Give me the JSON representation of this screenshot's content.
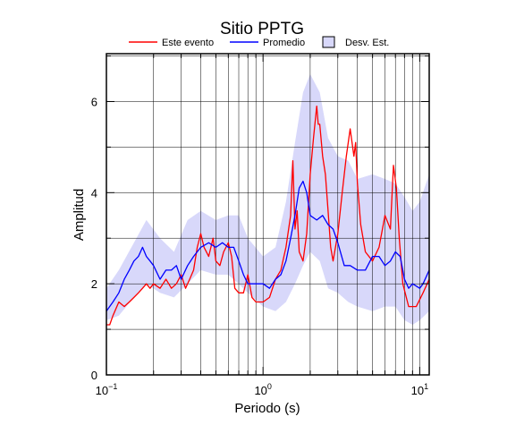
{
  "chart_data": {
    "type": "line",
    "title": "Sitio PPTG",
    "xlabel": "Periodo (s)",
    "ylabel": "Amplitud",
    "x_scale": "log",
    "xlim": [
      0.1,
      11.5
    ],
    "ylim": [
      0,
      7.05
    ],
    "grid": true,
    "legend_position": "top",
    "x_ticks": [
      {
        "value": 0.1,
        "base": "10",
        "exp": "−1"
      },
      {
        "value": 1,
        "base": "10",
        "exp": "0"
      },
      {
        "value": 10,
        "base": "10",
        "exp": "1"
      }
    ],
    "y_ticks": [
      "0",
      "2",
      "4",
      "6"
    ],
    "legend": [
      {
        "label": "Este evento",
        "kind": "line",
        "color": "#ff0000"
      },
      {
        "label": "Promedio",
        "kind": "line",
        "color": "#0000ff"
      },
      {
        "label": "Desv. Est.",
        "kind": "box",
        "color": "#d8d8fa"
      }
    ],
    "band": {
      "name": "Desv. Est.",
      "color": "#d8d8fa",
      "x": [
        0.1,
        0.12,
        0.15,
        0.18,
        0.22,
        0.27,
        0.33,
        0.4,
        0.5,
        0.6,
        0.7,
        0.8,
        1.0,
        1.2,
        1.4,
        1.6,
        1.8,
        2.0,
        2.3,
        2.6,
        3.0,
        3.5,
        4.0,
        5.0,
        6.0,
        7.0,
        8.0,
        9.0,
        10.0,
        11.5
      ],
      "upper": [
        1.9,
        2.3,
        2.9,
        3.4,
        3.0,
        2.7,
        3.4,
        3.6,
        3.4,
        3.5,
        3.5,
        3.0,
        2.6,
        2.8,
        3.8,
        5.1,
        6.2,
        6.6,
        6.2,
        5.2,
        4.8,
        4.7,
        4.3,
        4.4,
        4.3,
        4.2,
        3.9,
        3.6,
        3.8,
        4.4
      ],
      "lower": [
        1.2,
        1.3,
        1.7,
        2.0,
        1.8,
        1.7,
        2.0,
        2.3,
        2.2,
        2.2,
        2.0,
        1.8,
        1.5,
        1.4,
        1.6,
        2.0,
        2.4,
        2.7,
        2.5,
        1.9,
        1.8,
        1.6,
        1.5,
        1.4,
        1.5,
        1.5,
        1.2,
        1.1,
        1.2,
        1.4
      ]
    },
    "series": [
      {
        "name": "Este evento",
        "color": "#ff0000",
        "x": [
          0.1,
          0.105,
          0.11,
          0.12,
          0.13,
          0.14,
          0.15,
          0.16,
          0.17,
          0.18,
          0.19,
          0.2,
          0.22,
          0.24,
          0.26,
          0.28,
          0.3,
          0.32,
          0.34,
          0.36,
          0.38,
          0.4,
          0.42,
          0.45,
          0.48,
          0.5,
          0.53,
          0.56,
          0.6,
          0.63,
          0.66,
          0.7,
          0.75,
          0.8,
          0.85,
          0.9,
          1.0,
          1.1,
          1.2,
          1.3,
          1.4,
          1.5,
          1.55,
          1.6,
          1.65,
          1.7,
          1.8,
          1.9,
          2.0,
          2.1,
          2.2,
          2.25,
          2.3,
          2.4,
          2.5,
          2.6,
          2.7,
          2.8,
          3.0,
          3.2,
          3.4,
          3.6,
          3.8,
          3.9,
          4.0,
          4.2,
          4.5,
          5.0,
          5.5,
          6.0,
          6.5,
          6.8,
          7.1,
          7.4,
          7.8,
          8.5,
          9.5,
          10.5,
          11.5
        ],
        "y": [
          1.1,
          1.1,
          1.3,
          1.6,
          1.5,
          1.6,
          1.7,
          1.8,
          1.9,
          2.0,
          1.9,
          2.0,
          1.9,
          2.1,
          1.9,
          2.0,
          2.2,
          1.9,
          2.1,
          2.3,
          2.8,
          3.1,
          2.8,
          2.6,
          3.0,
          2.5,
          2.4,
          2.7,
          2.9,
          2.6,
          1.9,
          1.8,
          1.8,
          2.2,
          1.7,
          1.6,
          1.6,
          1.7,
          2.1,
          2.3,
          2.8,
          3.5,
          4.7,
          3.2,
          3.6,
          2.7,
          2.5,
          3.1,
          4.4,
          5.2,
          5.9,
          5.5,
          5.5,
          4.8,
          4.4,
          3.6,
          2.8,
          2.5,
          3.1,
          4.0,
          4.8,
          5.4,
          4.8,
          5.1,
          4.2,
          3.3,
          2.7,
          2.5,
          2.8,
          3.5,
          3.2,
          4.6,
          4.1,
          3.0,
          2.0,
          1.5,
          1.5,
          1.8,
          2.1
        ]
      },
      {
        "name": "Promedio",
        "color": "#0000ff",
        "x": [
          0.1,
          0.11,
          0.12,
          0.13,
          0.14,
          0.15,
          0.16,
          0.17,
          0.18,
          0.19,
          0.2,
          0.22,
          0.24,
          0.26,
          0.28,
          0.3,
          0.33,
          0.36,
          0.4,
          0.45,
          0.5,
          0.55,
          0.6,
          0.65,
          0.7,
          0.75,
          0.8,
          0.9,
          1.0,
          1.1,
          1.2,
          1.3,
          1.4,
          1.5,
          1.6,
          1.7,
          1.8,
          1.9,
          2.0,
          2.2,
          2.4,
          2.6,
          2.8,
          3.0,
          3.3,
          3.6,
          4.0,
          4.5,
          5.0,
          5.5,
          6.0,
          6.5,
          7.0,
          7.5,
          8.0,
          8.5,
          9.0,
          10.0,
          10.5,
          11.5
        ],
        "y": [
          1.4,
          1.6,
          1.8,
          2.1,
          2.3,
          2.5,
          2.6,
          2.8,
          2.6,
          2.5,
          2.4,
          2.1,
          2.3,
          2.3,
          2.4,
          2.1,
          2.4,
          2.6,
          2.8,
          2.9,
          2.8,
          2.9,
          2.8,
          2.8,
          2.5,
          2.2,
          2.0,
          2.0,
          2.0,
          1.9,
          2.1,
          2.2,
          2.5,
          3.0,
          3.5,
          4.1,
          4.25,
          4.0,
          3.5,
          3.4,
          3.5,
          3.3,
          3.2,
          2.9,
          2.4,
          2.4,
          2.3,
          2.3,
          2.6,
          2.6,
          2.4,
          2.5,
          2.7,
          2.6,
          2.1,
          1.9,
          2.0,
          1.9,
          2.0,
          2.3
        ]
      }
    ]
  }
}
